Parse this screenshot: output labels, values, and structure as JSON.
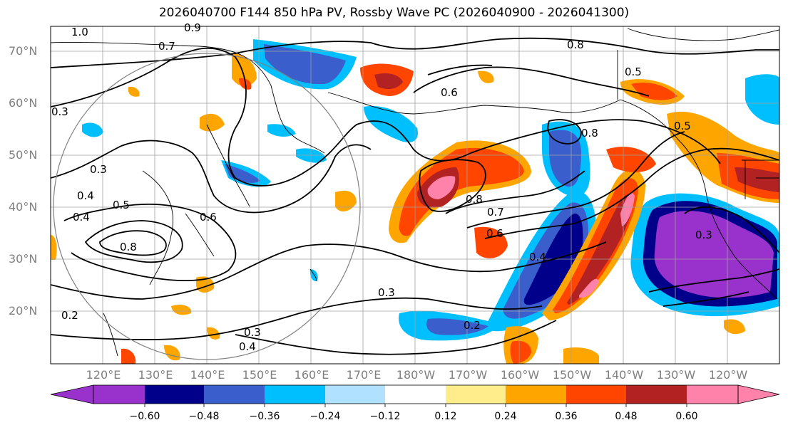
{
  "title": "2026040700 F144 850 hPa PV, Rossby Wave PC (2026040900 - 2026041300)",
  "lat_labels": [
    "70°N",
    "60°N",
    "50°N",
    "40°N",
    "30°N",
    "20°N"
  ],
  "lon_labels": [
    "120°E",
    "130°E",
    "140°E",
    "150°E",
    "160°E",
    "170°E",
    "180°W",
    "170°W",
    "160°W",
    "150°W",
    "140°W",
    "130°W",
    "120°W"
  ],
  "colorbar": {
    "ticks": [
      "−0.60",
      "−0.48",
      "−0.36",
      "−0.24",
      "−0.12",
      "0.12",
      "0.24",
      "0.36",
      "0.48",
      "0.60"
    ],
    "colors": [
      "#9932cc",
      "#00008b",
      "#3a5fcd",
      "#00bfff",
      "#b0e2ff",
      "#ffffff",
      "#ffec8b",
      "#ffa500",
      "#ff4500",
      "#b22222",
      "#ff82ab"
    ]
  },
  "contour_labels": [
    "1.0",
    "0.9",
    "0.7",
    "0.3",
    "0.3",
    "0.4",
    "0.4",
    "0.5",
    "0.8",
    "0.5",
    "0.8",
    "0.6",
    "0.8",
    "0.7",
    "0.6",
    "0.4",
    "0.3",
    "0.2",
    "0.5",
    "0.3",
    "0.3",
    "0.4",
    "0.8",
    "0.6",
    "0.2"
  ]
}
